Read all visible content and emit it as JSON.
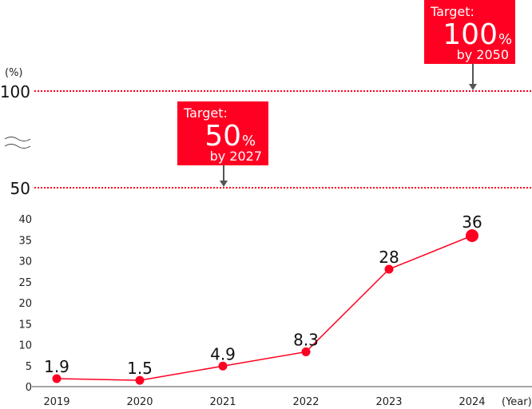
{
  "chart_data": {
    "type": "line",
    "unit_label": "(%)",
    "x_unit_label": "(Year)",
    "categories": [
      "2019",
      "2020",
      "2021",
      "2022",
      "2023",
      "2024"
    ],
    "values": [
      1.9,
      1.5,
      4.9,
      8.3,
      28,
      36
    ],
    "data_labels": [
      "1.9",
      "1.5",
      "4.9",
      "8.3",
      "28",
      "36"
    ],
    "yticks": [
      "0",
      "5",
      "10",
      "15",
      "20",
      "25",
      "30",
      "35",
      "40"
    ],
    "ytick_values": [
      0,
      5,
      10,
      15,
      20,
      25,
      30,
      35,
      40
    ],
    "broken_axis_ticks": [
      "50",
      "100"
    ],
    "ylim": [
      0,
      40
    ],
    "axis_break": true,
    "grid": false,
    "color": "#ff0022",
    "targets": [
      {
        "title": "Target:",
        "value": "50",
        "unit": "%",
        "by": "by 2027",
        "level": 50,
        "year": "2021"
      },
      {
        "title": "Target:",
        "value": "100",
        "unit": "%",
        "by": "by 2050",
        "level": 100,
        "year": "2024"
      }
    ]
  }
}
